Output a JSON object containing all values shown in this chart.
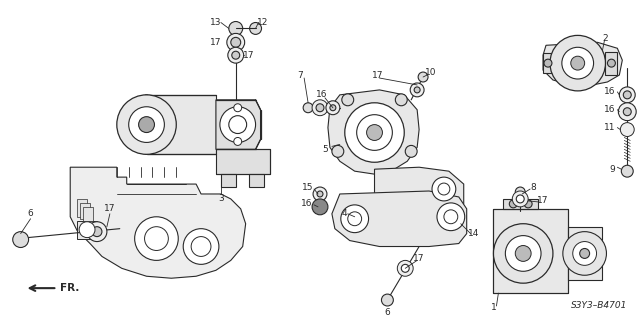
{
  "bg_color": "#ffffff",
  "line_color": "#2a2a2a",
  "diagram_code": "S3Y3–B4701",
  "figsize": [
    6.4,
    3.19
  ],
  "dpi": 100
}
